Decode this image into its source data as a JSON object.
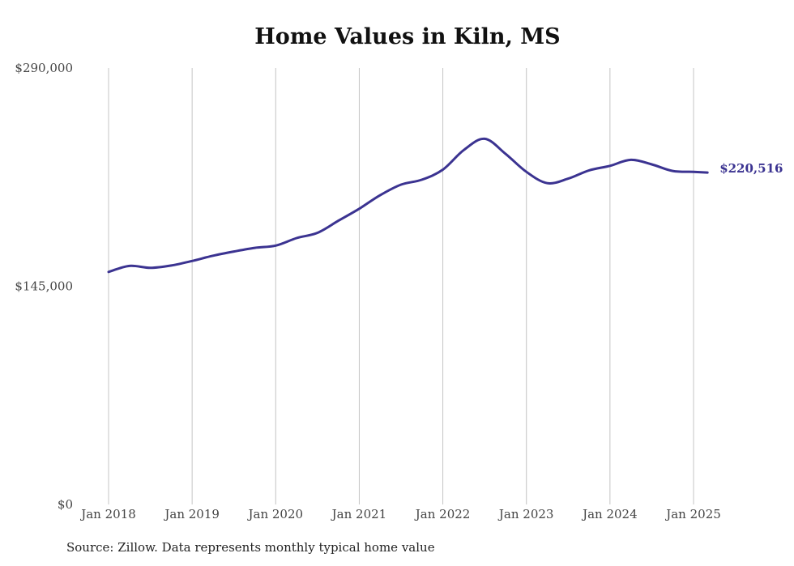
{
  "chart_data": {
    "type": "line",
    "title": "Home Values in Kiln, MS",
    "source_note": "Source: Zillow. Data represents monthly typical home value",
    "xlabel": "",
    "ylabel": "",
    "ylim": [
      0,
      290000
    ],
    "y_ticks": [
      "$0",
      "$145,000",
      "$290,000"
    ],
    "y_tick_values": [
      0,
      145000,
      290000
    ],
    "x_ticks": [
      "Jan 2018",
      "Jan 2019",
      "Jan 2020",
      "Jan 2021",
      "Jan 2022",
      "Jan 2023",
      "Jan 2024",
      "Jan 2025"
    ],
    "grid": "vertical",
    "line_color": "#3b3391",
    "end_label": "$220,516",
    "series": [
      {
        "x": [
          "2018-01",
          "2018-04",
          "2018-07",
          "2018-10",
          "2019-01",
          "2019-04",
          "2019-07",
          "2019-10",
          "2020-01",
          "2020-04",
          "2020-07",
          "2020-10",
          "2021-01",
          "2021-04",
          "2021-07",
          "2021-10",
          "2022-01",
          "2022-04",
          "2022-07",
          "2022-10",
          "2023-01",
          "2023-04",
          "2023-07",
          "2023-10",
          "2024-01",
          "2024-04",
          "2024-07",
          "2024-10",
          "2025-01",
          "2025-03"
        ],
        "values": [
          154500,
          158500,
          157200,
          158800,
          161800,
          165300,
          168100,
          170500,
          172000,
          177000,
          180500,
          188500,
          196500,
          205500,
          212500,
          215800,
          222500,
          235500,
          243000,
          233000,
          221000,
          213500,
          216500,
          222000,
          225000,
          229000,
          226000,
          221600,
          221000,
          220516
        ]
      }
    ]
  }
}
